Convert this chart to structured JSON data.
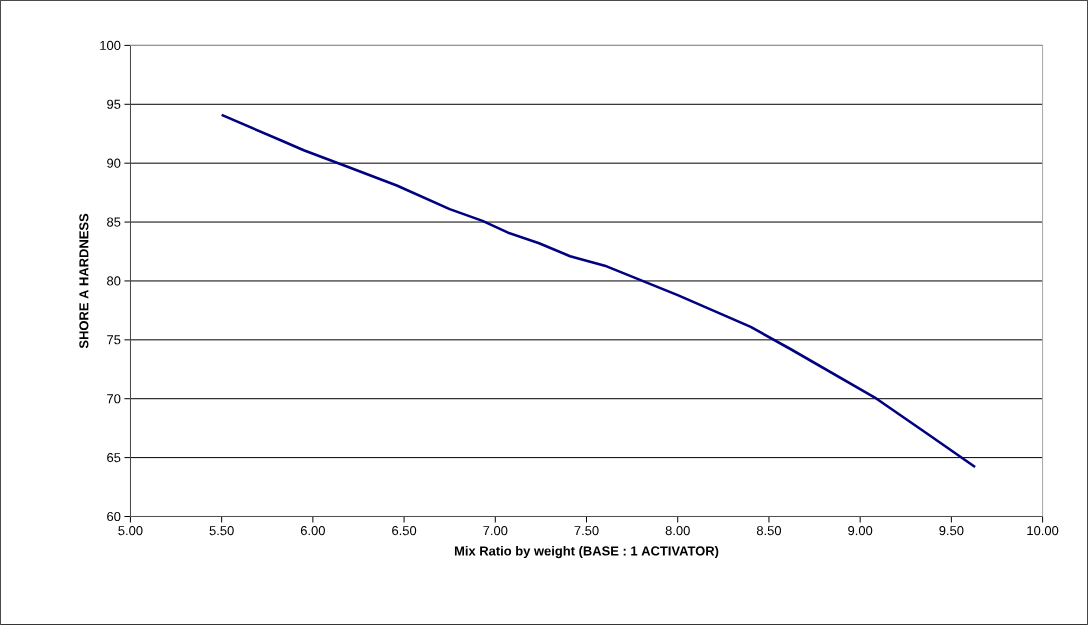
{
  "chart_data": {
    "type": "line",
    "xlabel": "Mix Ratio by weight (BASE : 1 ACTIVATOR)",
    "ylabel": "SHORE A HARDNESS",
    "x": [
      5.5,
      5.83,
      5.95,
      6.19,
      6.46,
      6.75,
      6.93,
      7.07,
      7.24,
      7.41,
      7.6,
      8.0,
      8.4,
      8.62,
      9.09,
      9.37,
      9.63
    ],
    "series": [
      {
        "color": "#000080",
        "values": [
          94.1,
          91.9,
          91.1,
          89.7,
          88.1,
          86.1,
          85.1,
          84.1,
          83.2,
          82.1,
          81.3,
          78.8,
          76.1,
          74.2,
          70.0,
          67.0,
          64.2
        ]
      }
    ],
    "xlim": [
      5,
      10
    ],
    "ylim": [
      60,
      100
    ],
    "xticks": [
      {
        "value": 5,
        "label": "5.00"
      },
      {
        "value": 5.5,
        "label": "5.50"
      },
      {
        "value": 6,
        "label": "6.00"
      },
      {
        "value": 6.5,
        "label": "6.50"
      },
      {
        "value": 7,
        "label": "7.00"
      },
      {
        "value": 7.5,
        "label": "7.50"
      },
      {
        "value": 8,
        "label": "8.00"
      },
      {
        "value": 8.5,
        "label": "8.50"
      },
      {
        "value": 9,
        "label": "9.00"
      },
      {
        "value": 9.5,
        "label": "9.50"
      },
      {
        "value": 10,
        "label": "10.00"
      }
    ],
    "yticks": [
      60,
      65,
      70,
      75,
      80,
      85,
      90,
      95,
      100
    ],
    "grid": "y",
    "marker": "none",
    "line_style": "solid"
  }
}
